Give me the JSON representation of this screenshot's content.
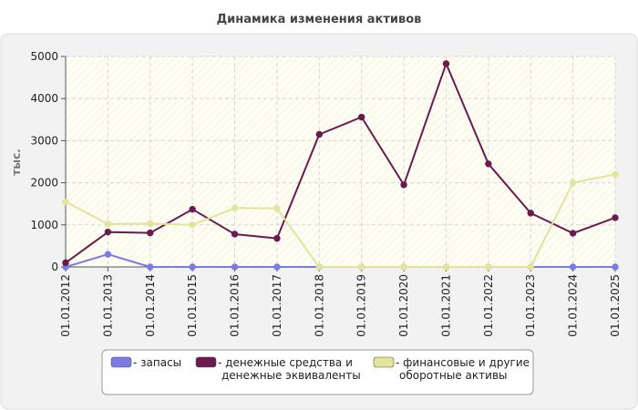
{
  "chart_data": {
    "type": "line",
    "title": "Динамика изменения активов",
    "ylabel": "тыс.",
    "xlabel": "",
    "ylim": [
      0,
      5000
    ],
    "yticks": [
      0,
      1000,
      2000,
      3000,
      4000,
      5000
    ],
    "grid": true,
    "legend_position": "bottom",
    "x": [
      "01.01.2012",
      "01.01.2013",
      "01.01.2014",
      "01.01.2015",
      "01.01.2016",
      "01.01.2017",
      "01.01.2018",
      "01.01.2019",
      "01.01.2020",
      "01.01.2021",
      "01.01.2022",
      "01.01.2023",
      "01.01.2024",
      "01.01.2025"
    ],
    "series": [
      {
        "name": "запасы",
        "color": "#7b7be3",
        "values": [
          0,
          300,
          0,
          0,
          0,
          0,
          0,
          0,
          0,
          0,
          0,
          0,
          0,
          0
        ]
      },
      {
        "name": "денежные средства и денежные эквиваленты",
        "legend_lines": [
          "денежные средства и",
          "денежные эквиваленты"
        ],
        "color": "#6b1a4f",
        "values": [
          100,
          830,
          810,
          1370,
          780,
          680,
          3150,
          3560,
          1950,
          4830,
          2450,
          1280,
          800,
          1170
        ]
      },
      {
        "name": "финансовые и другие оборотные активы",
        "legend_lines": [
          "финансовые и другие",
          "оборотные активы"
        ],
        "color": "#e3e39b",
        "values": [
          1550,
          1020,
          1030,
          1000,
          1400,
          1390,
          0,
          0,
          0,
          0,
          0,
          0,
          2000,
          2200
        ]
      }
    ]
  }
}
